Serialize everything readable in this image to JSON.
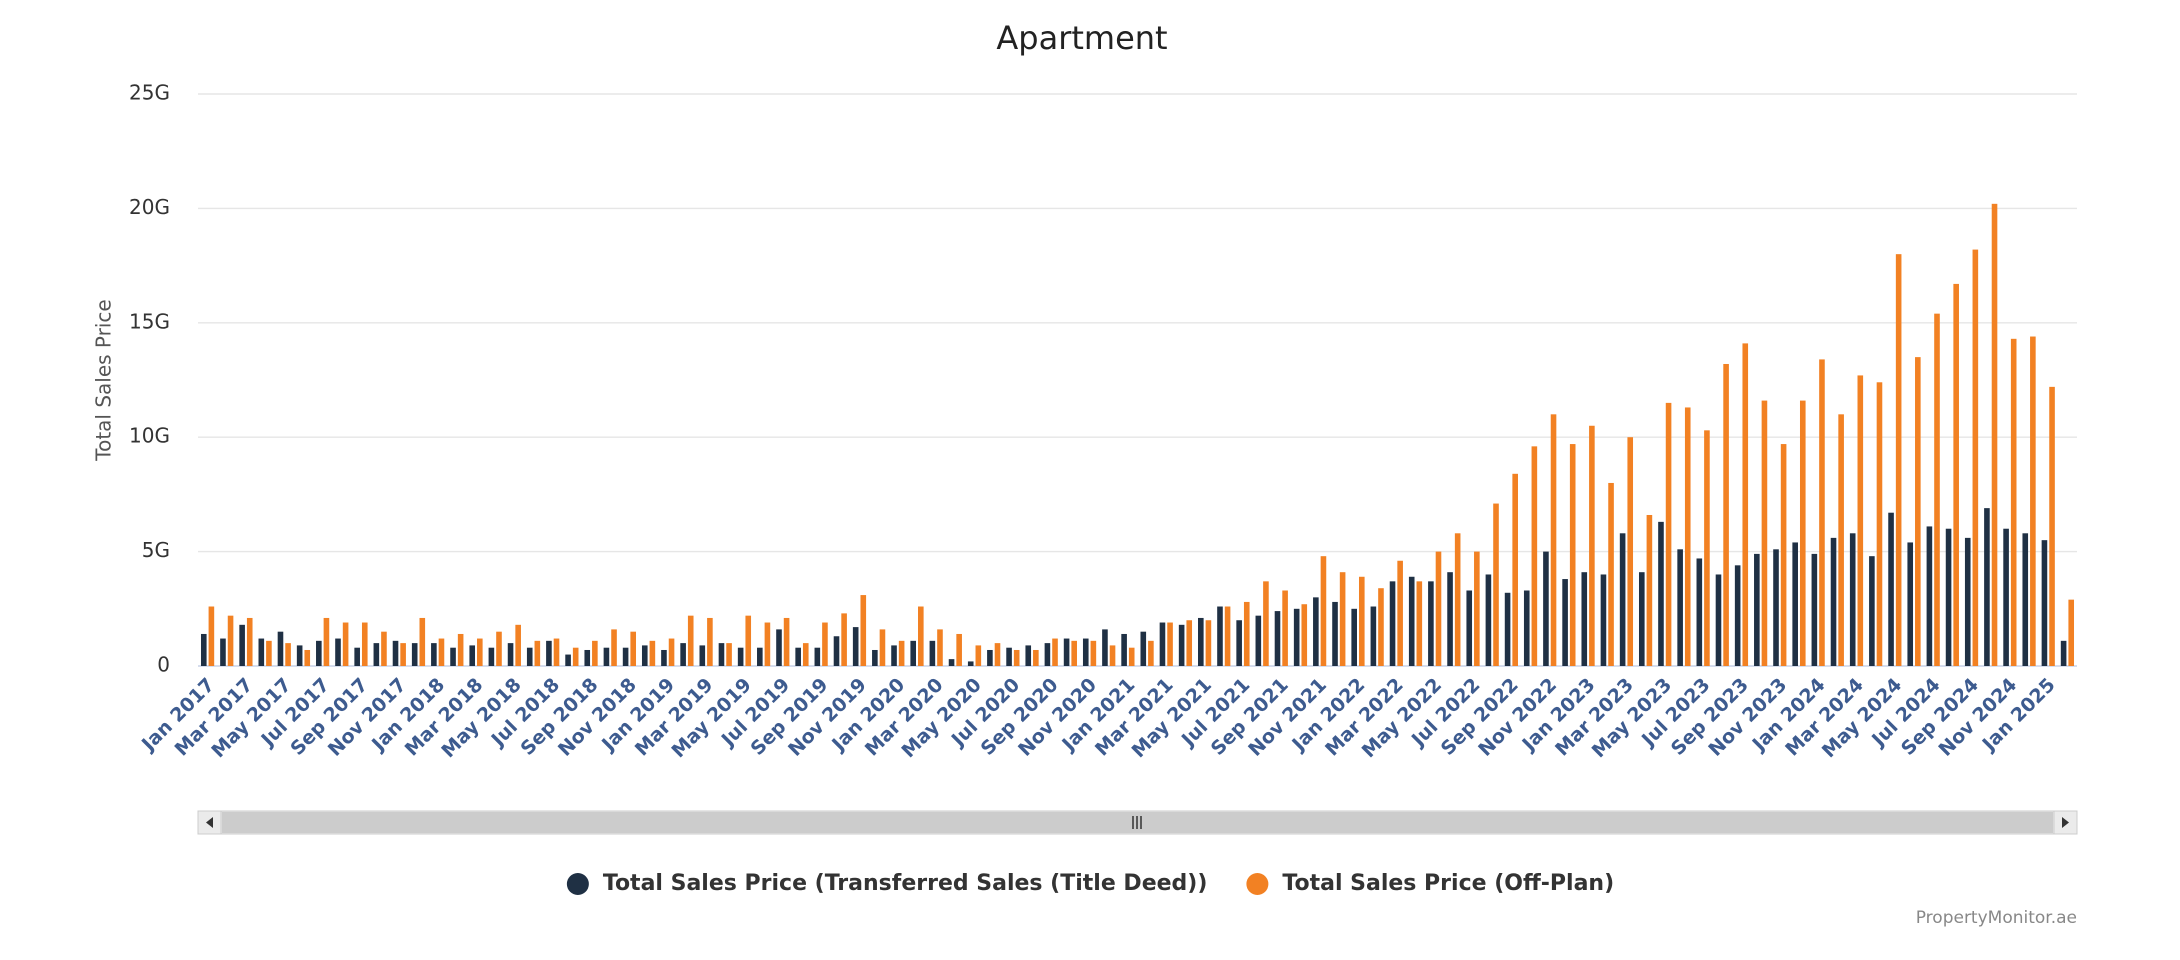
{
  "chart_data": {
    "type": "bar",
    "title": "Apartment",
    "y_label": "Total Sales Price",
    "credit": "PropertyMonitor.ae",
    "categories": [
      "Jan 2017",
      null,
      "Mar 2017",
      null,
      "May 2017",
      null,
      "Jul 2017",
      null,
      "Sep 2017",
      null,
      "Nov 2017",
      null,
      "Jan 2018",
      null,
      "Mar 2018",
      null,
      "May 2018",
      null,
      "Jul 2018",
      null,
      "Sep 2018",
      null,
      "Nov 2018",
      null,
      "Jan 2019",
      null,
      "Mar 2019",
      null,
      "May 2019",
      null,
      "Jul 2019",
      null,
      "Sep 2019",
      null,
      "Nov 2019",
      null,
      "Jan 2020",
      null,
      "Mar 2020",
      null,
      "May 2020",
      null,
      "Jul 2020",
      null,
      "Sep 2020",
      null,
      "Nov 2020",
      null,
      "Jan 2021",
      null,
      "Mar 2021",
      null,
      "May 2021",
      null,
      "Jul 2021",
      null,
      "Sep 2021",
      null,
      "Nov 2021",
      null,
      "Jan 2022",
      null,
      "Mar 2022",
      null,
      "May 2022",
      null,
      "Jul 2022",
      null,
      "Sep 2022",
      null,
      "Nov 2022",
      null,
      "Jan 2023",
      null,
      "Mar 2023",
      null,
      "May 2023",
      null,
      "Jul 2023",
      null,
      "Sep 2023",
      null,
      "Nov 2023",
      null,
      "Jan 2024",
      null,
      "Mar 2024",
      null,
      "May 2024",
      null,
      "Jul 2024",
      null,
      "Sep 2024",
      null,
      "Nov 2024",
      null,
      "Jan 2025",
      null
    ],
    "series": [
      {
        "name": "Total Sales Price (Transferred Sales (Title Deed))",
        "color": "#1f3044",
        "values": [
          1.4,
          1.2,
          1.8,
          1.2,
          1.5,
          0.9,
          1.1,
          1.2,
          0.8,
          1.0,
          1.1,
          1.0,
          1.0,
          0.8,
          0.9,
          0.8,
          1.0,
          0.8,
          1.1,
          0.5,
          0.7,
          0.8,
          0.8,
          0.9,
          0.7,
          1.0,
          0.9,
          1.0,
          0.8,
          0.8,
          1.6,
          0.8,
          0.8,
          1.3,
          1.7,
          0.7,
          0.9,
          1.1,
          1.1,
          0.3,
          0.2,
          0.7,
          0.8,
          0.9,
          1.0,
          1.2,
          1.2,
          1.6,
          1.4,
          1.5,
          1.9,
          1.8,
          2.1,
          2.6,
          2.0,
          2.2,
          2.4,
          2.5,
          3.0,
          2.8,
          2.5,
          2.6,
          3.7,
          3.9,
          3.7,
          4.1,
          3.3,
          4.0,
          3.2,
          3.3,
          5.0,
          3.8,
          4.1,
          4.0,
          5.8,
          4.1,
          6.3,
          5.1,
          4.7,
          4.0,
          4.4,
          4.9,
          5.1,
          5.4,
          4.9,
          5.6,
          5.8,
          4.8,
          6.7,
          5.4,
          6.1,
          6.0,
          5.6,
          6.9,
          6.0,
          5.8,
          5.5,
          1.1
        ]
      },
      {
        "name": "Total Sales Price (Off-Plan)",
        "color": "#f28123",
        "values": [
          2.6,
          2.2,
          2.1,
          1.1,
          1.0,
          0.7,
          2.1,
          1.9,
          1.9,
          1.5,
          1.0,
          2.1,
          1.2,
          1.4,
          1.2,
          1.5,
          1.8,
          1.1,
          1.2,
          0.8,
          1.1,
          1.6,
          1.5,
          1.1,
          1.2,
          2.2,
          2.1,
          1.0,
          2.2,
          1.9,
          2.1,
          1.0,
          1.9,
          2.3,
          3.1,
          1.6,
          1.1,
          2.6,
          1.6,
          1.4,
          0.9,
          1.0,
          0.7,
          0.7,
          1.2,
          1.1,
          1.1,
          0.9,
          0.8,
          1.1,
          1.9,
          2.0,
          2.0,
          2.6,
          2.8,
          3.7,
          3.3,
          2.7,
          4.8,
          4.1,
          3.9,
          3.4,
          4.6,
          3.7,
          5.0,
          5.8,
          5.0,
          7.1,
          8.4,
          9.6,
          11.0,
          9.7,
          10.5,
          8.0,
          10.0,
          6.6,
          11.5,
          11.3,
          10.3,
          13.2,
          14.1,
          11.6,
          9.7,
          11.6,
          13.4,
          11.0,
          12.7,
          12.4,
          18.0,
          13.5,
          15.4,
          16.7,
          18.2,
          20.2,
          14.3,
          14.4,
          12.2,
          2.9
        ]
      }
    ],
    "ylim": [
      0,
      25
    ],
    "yticks": [
      0,
      {
        "value": 5,
        "label": "5G"
      },
      {
        "value": 10,
        "label": "10G"
      },
      {
        "value": 15,
        "label": "15G"
      },
      {
        "value": 20,
        "label": "20G"
      },
      {
        "value": 25,
        "label": "25G"
      }
    ],
    "grid": true
  }
}
